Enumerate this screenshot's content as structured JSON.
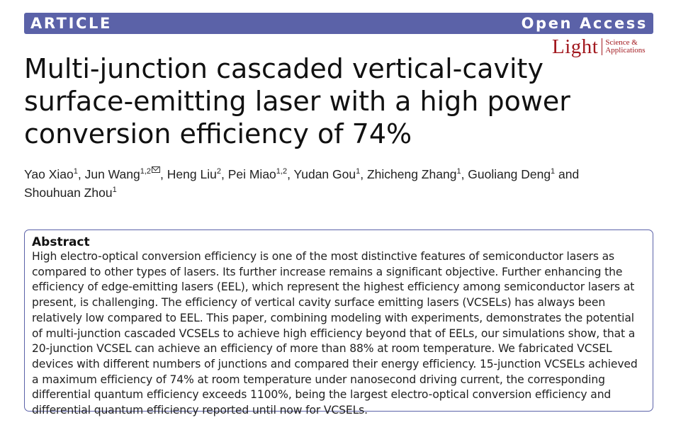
{
  "banner": {
    "left_label": "ARTICLE",
    "right_label": "Open Access"
  },
  "journal": {
    "name": "Light",
    "subtitle_line1": "Science &",
    "subtitle_line2": "Applications"
  },
  "title": "Multi-junction cascaded vertical-cavity surface-emitting laser with a high power conversion efficiency of 74%",
  "authors": [
    {
      "name": "Yao Xiao",
      "aff": "1"
    },
    {
      "name": "Jun Wang",
      "aff": "1,2",
      "corresponding": true
    },
    {
      "name": "Heng Liu",
      "aff": "2"
    },
    {
      "name": "Pei Miao",
      "aff": "1,2"
    },
    {
      "name": "Yudan Gou",
      "aff": "1"
    },
    {
      "name": "Zhicheng Zhang",
      "aff": "1"
    },
    {
      "name": "Guoliang Deng",
      "aff": "1"
    },
    {
      "name": "Shouhuan Zhou",
      "aff": "1"
    }
  ],
  "authors_sep": ", ",
  "authors_last_sep": " and ",
  "abstract": {
    "heading": "Abstract",
    "text": "High electro-optical conversion efficiency is one of the most distinctive features of semiconductor lasers as compared to other types of lasers. Its further increase remains a significant objective. Further enhancing the efficiency of edge-emitting lasers (EEL), which represent the highest efficiency among semiconductor lasers at present, is challenging. The efficiency of vertical cavity surface emitting lasers (VCSELs) has always been relatively low compared to EEL. This paper, combining modeling with experiments, demonstrates the potential of multi-junction cascaded VCSELs to achieve high efficiency beyond that of EELs, our simulations show, that a 20-junction VCSEL can achieve an efficiency of more than 88% at room temperature. We fabricated VCSEL devices with different numbers of junctions and compared their energy efficiency. 15-junction VCSELs achieved a maximum efficiency of 74% at room temperature under nanosecond driving current, the corresponding differential quantum efficiency exceeds 1100%, being the largest electro-optical conversion efficiency and differential quantum efficiency reported until now for VCSELs."
  },
  "colors": {
    "banner": "#5b62a8",
    "journal_logo": "#a2191f",
    "abstract_border": "#5b62a8"
  },
  "icons": {
    "corresponding_author": "mail-icon"
  }
}
